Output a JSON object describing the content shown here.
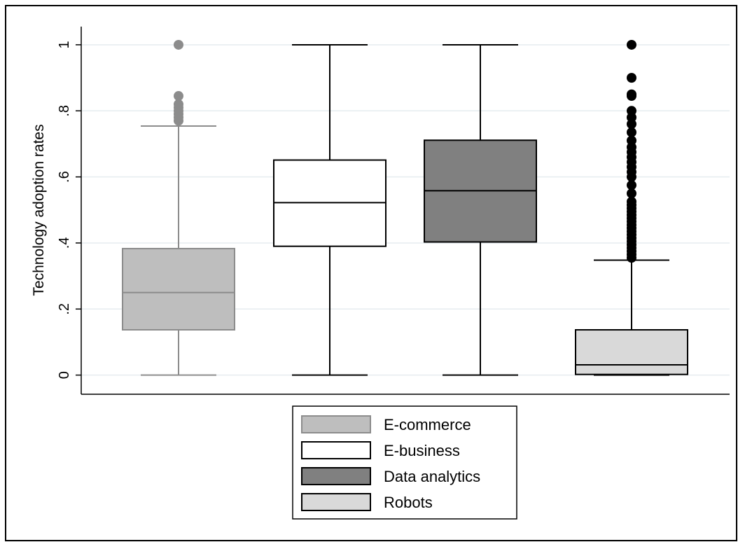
{
  "chart_data": {
    "type": "box",
    "ylabel": "Technology adoption rates",
    "xlabel": "",
    "ylim": [
      -0.058,
      1.055
    ],
    "yticks": [
      0,
      0.2,
      0.4,
      0.6,
      0.8,
      1
    ],
    "ytick_labels": [
      "0",
      ".2",
      ".4",
      ".6",
      ".8",
      "1"
    ],
    "grid": true,
    "legend_position": "bottom",
    "series": [
      {
        "name": "E-commerce",
        "fill": "#bebebe",
        "stroke": "#8c8c8c",
        "whisker_low": 0,
        "q1": 0.137,
        "median": 0.25,
        "q3": 0.383,
        "whisker_high": 0.754,
        "outliers": [
          0.77,
          0.78,
          0.79,
          0.8,
          0.81,
          0.82,
          0.845,
          1.0
        ]
      },
      {
        "name": "E-business",
        "fill": "#ffffff",
        "stroke": "#000000",
        "whisker_low": 0,
        "q1": 0.39,
        "median": 0.522,
        "q3": 0.651,
        "whisker_high": 1.0,
        "outliers": []
      },
      {
        "name": "Data analytics",
        "fill": "#808080",
        "stroke": "#000000",
        "whisker_low": 0,
        "q1": 0.403,
        "median": 0.558,
        "q3": 0.711,
        "whisker_high": 1.0,
        "outliers": []
      },
      {
        "name": "Robots",
        "fill": "#d9d9d9",
        "stroke": "#000000",
        "whisker_low": 0,
        "q1": 0.002,
        "median": 0.031,
        "q3": 0.137,
        "whisker_high": 0.348,
        "outliers": [
          0.355,
          0.365,
          0.375,
          0.385,
          0.395,
          0.405,
          0.415,
          0.425,
          0.435,
          0.445,
          0.455,
          0.465,
          0.475,
          0.485,
          0.495,
          0.505,
          0.515,
          0.525,
          0.55,
          0.575,
          0.6,
          0.615,
          0.63,
          0.645,
          0.66,
          0.675,
          0.69,
          0.71,
          0.735,
          0.76,
          0.78,
          0.8,
          0.845,
          0.85,
          0.9,
          1.0
        ]
      }
    ]
  }
}
